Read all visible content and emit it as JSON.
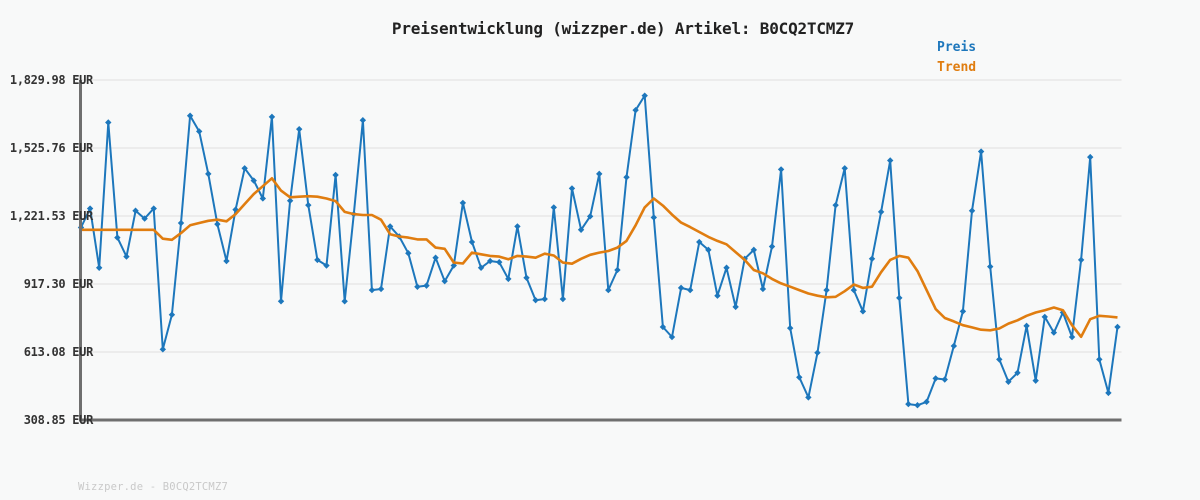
{
  "title": "Preisentwicklung (wizzper.de) Artikel: B0CQ2TCMZ7",
  "watermark": "Wizzper.de - B0CQ2TCMZ7",
  "legend": {
    "price_label": "Preis",
    "trend_label": "Trend"
  },
  "colors": {
    "price": "#1d77bc",
    "trend": "#e07d10",
    "grid": "#e4e4e4",
    "axis": "#6f6f6f",
    "title_text": "#222222",
    "tick_text": "#333333",
    "watermark_text": "#c9c9c9",
    "background": "#f8f9f9"
  },
  "chart_data": {
    "type": "line",
    "title": "Preisentwicklung (wizzper.de) Artikel: B0CQ2TCMZ7",
    "xlabel": "",
    "ylabel": "EUR",
    "x_axis_tick_labels": "none",
    "grid": "horizontal-only",
    "legend_position": "top-right",
    "ylim": [
      308.85,
      1829.98
    ],
    "y_ticks": [
      {
        "label": "1,829.98 EUR",
        "value": 1829.98
      },
      {
        "label": "1,525.76 EUR",
        "value": 1525.76
      },
      {
        "label": "1,221.53 EUR",
        "value": 1221.53
      },
      {
        "label": "917.30 EUR",
        "value": 917.3
      },
      {
        "label": "613.08 EUR",
        "value": 613.08
      },
      {
        "label": "308.85 EUR",
        "value": 308.85
      }
    ],
    "series": [
      {
        "name": "Preis",
        "color": "#1d77bc",
        "marker": "diamond",
        "line_width": 2,
        "values": [
          1170,
          1255,
          990,
          1640,
          1125,
          1040,
          1245,
          1210,
          1255,
          625,
          780,
          1190,
          1670,
          1600,
          1410,
          1185,
          1020,
          1250,
          1435,
          1380,
          1300,
          1665,
          840,
          1290,
          1610,
          1270,
          1025,
          1000,
          1405,
          840,
          1230,
          1650,
          890,
          895,
          1175,
          1130,
          1055,
          905,
          910,
          1035,
          930,
          1000,
          1280,
          1105,
          990,
          1020,
          1015,
          940,
          1175,
          945,
          845,
          850,
          1260,
          850,
          1345,
          1160,
          1220,
          1410,
          890,
          980,
          1395,
          1695,
          1760,
          1215,
          725,
          680,
          900,
          890,
          1105,
          1070,
          865,
          990,
          815,
          1030,
          1070,
          895,
          1085,
          1430,
          720,
          500,
          410,
          610,
          890,
          1270,
          1435,
          890,
          795,
          1030,
          1240,
          1470,
          855,
          380,
          375,
          390,
          495,
          490,
          640,
          795,
          1245,
          1510,
          995,
          580,
          480,
          520,
          730,
          485,
          770,
          700,
          790,
          680,
          1025,
          1485,
          580,
          430,
          725
        ]
      },
      {
        "name": "Trend",
        "color": "#e07d10",
        "marker": "none",
        "line_width": 2.6,
        "values": [
          1160,
          1160,
          1160,
          1160,
          1160,
          1160,
          1160,
          1160,
          1160,
          1120,
          1115,
          1145,
          1180,
          1190,
          1200,
          1205,
          1198,
          1230,
          1275,
          1320,
          1355,
          1390,
          1335,
          1305,
          1308,
          1310,
          1308,
          1300,
          1288,
          1240,
          1230,
          1226,
          1226,
          1205,
          1140,
          1130,
          1125,
          1117,
          1117,
          1080,
          1075,
          1013,
          1009,
          1058,
          1050,
          1043,
          1040,
          1028,
          1043,
          1040,
          1035,
          1053,
          1045,
          1013,
          1008,
          1030,
          1048,
          1058,
          1065,
          1080,
          1110,
          1180,
          1260,
          1300,
          1268,
          1228,
          1192,
          1172,
          1150,
          1128,
          1110,
          1095,
          1060,
          1025,
          980,
          965,
          940,
          920,
          905,
          890,
          875,
          865,
          858,
          860,
          885,
          915,
          900,
          905,
          970,
          1025,
          1043,
          1035,
          975,
          890,
          805,
          765,
          750,
          733,
          723,
          713,
          710,
          718,
          740,
          755,
          775,
          790,
          800,
          812,
          800,
          733,
          681,
          760,
          775,
          772,
          768
        ]
      }
    ]
  }
}
